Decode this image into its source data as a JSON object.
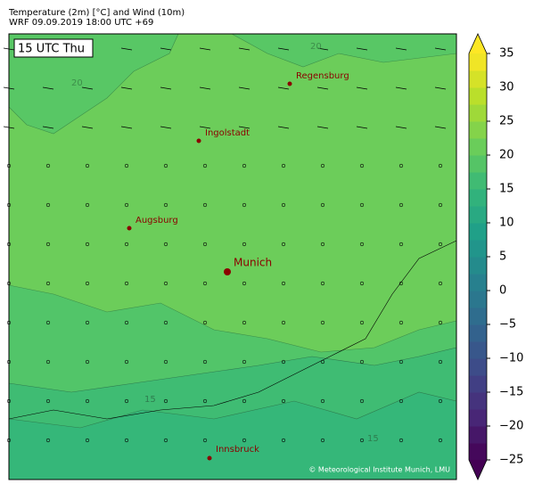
{
  "header": {
    "title": "Temperature (2m) [°C] and Wind (10m)",
    "subtitle": "WRF 09.09.2019 18:00 UTC +69"
  },
  "map": {
    "time_label": "15 UTC Thu",
    "cities": [
      {
        "name": "Regensburg"
      },
      {
        "name": "Ingolstadt"
      },
      {
        "name": "Augsburg"
      },
      {
        "name": "Munich"
      },
      {
        "name": "Innsbruck"
      }
    ],
    "contour_labels": [
      "20",
      "15"
    ],
    "credit": "© Meteorological Institute Munich, LMU"
  },
  "colorbar": {
    "lim": [
      -25,
      35
    ],
    "ticks": [
      {
        "value": -25,
        "label": "−25"
      },
      {
        "value": -20,
        "label": "−20"
      },
      {
        "value": -15,
        "label": "−15"
      },
      {
        "value": -10,
        "label": "−10"
      },
      {
        "value": -5,
        "label": "−5"
      },
      0,
      5,
      10,
      15,
      20,
      25,
      30,
      35
    ]
  }
}
